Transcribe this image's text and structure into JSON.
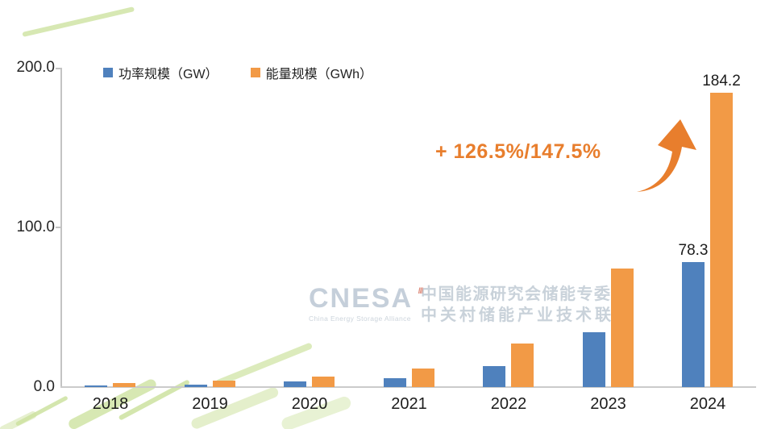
{
  "colors": {
    "gw_blue": "#4F81BD",
    "gwh_orange": "#F29A46",
    "annotation_orange": "#E87E2D",
    "axis_gray": "#C3C3C3",
    "watermark_gray": "#C7D0DA",
    "decor_green": "#CDE2A0"
  },
  "legend": {
    "items": [
      {
        "label": "功率规模（GW）",
        "color": "#4F81BD"
      },
      {
        "label": "能量规模（GWh）",
        "color": "#F29A46"
      }
    ]
  },
  "annotation": {
    "growth_text": "+ 126.5%/147.5%"
  },
  "watermark": {
    "logo": "CNESA",
    "logo_sub": "China Energy Storage Alliance",
    "cn_line1": "中国能源研究会储能专委会",
    "cn_line2": "中关村储能产业技术联盟"
  },
  "chart_data": {
    "type": "bar",
    "categories": [
      "2018",
      "2019",
      "2020",
      "2021",
      "2022",
      "2023",
      "2024"
    ],
    "series": [
      {
        "name": "功率规模（GW）",
        "color": "#4F81BD",
        "values": [
          1.0,
          1.7,
          3.3,
          5.8,
          13.1,
          34.5,
          78.3
        ]
      },
      {
        "name": "能量规模（GWh）",
        "color": "#F29A46",
        "values": [
          2.4,
          4.0,
          6.6,
          11.6,
          27.1,
          74.5,
          184.2
        ]
      }
    ],
    "value_labels": {
      "year_index": 6,
      "gw": "78.3",
      "gwh": "184.2"
    },
    "yticks": [
      "200.0",
      "100.0",
      "0.0"
    ],
    "ylim": [
      0,
      200
    ],
    "grid": false,
    "legend_position": "top"
  }
}
